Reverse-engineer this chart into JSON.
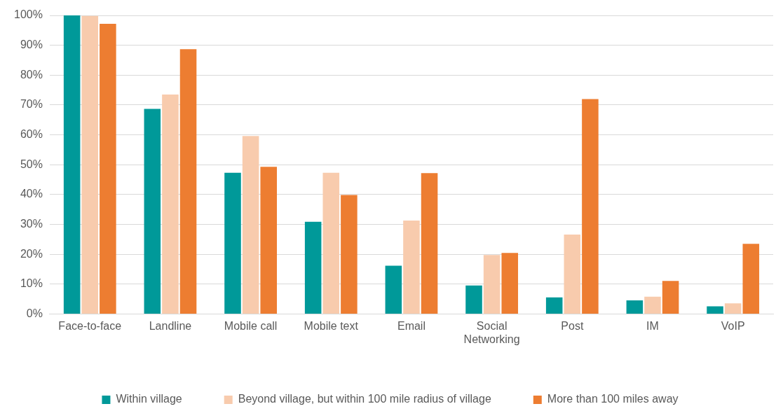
{
  "chart_data": {
    "type": "bar",
    "categories": [
      "Face-to-face",
      "Landline",
      "Mobile call",
      "Mobile text",
      "Email",
      "Social Networking",
      "Post",
      "IM",
      "VoIP"
    ],
    "series": [
      {
        "name": "Within village",
        "color": "#009999",
        "values": [
          100,
          68.7,
          47.3,
          30.9,
          16.2,
          9.6,
          5.6,
          4.6,
          2.6
        ]
      },
      {
        "name": "Beyond village, but within 100 mile radius of village",
        "color": "#f8cbad",
        "values": [
          99.8,
          73.5,
          59.6,
          47.3,
          31.3,
          19.8,
          26.6,
          5.8,
          3.6
        ]
      },
      {
        "name": "More than 100 miles away",
        "color": "#ed7d31",
        "values": [
          97.2,
          88.7,
          49.3,
          39.9,
          47.2,
          20.5,
          72.0,
          11.1,
          23.5
        ]
      }
    ],
    "ylim": [
      0,
      100
    ],
    "yticks": [
      {
        "value": 0,
        "label": "0%"
      },
      {
        "value": 10,
        "label": "10%"
      },
      {
        "value": 20,
        "label": "20%"
      },
      {
        "value": 30,
        "label": "30%"
      },
      {
        "value": 40,
        "label": "40%"
      },
      {
        "value": 50,
        "label": "50%"
      },
      {
        "value": 60,
        "label": "60%"
      },
      {
        "value": 70,
        "label": "70%"
      },
      {
        "value": 80,
        "label": "80%"
      },
      {
        "value": 90,
        "label": "90%"
      },
      {
        "value": 100,
        "label": "100%"
      }
    ],
    "grid": "y",
    "legend": "bottom"
  }
}
